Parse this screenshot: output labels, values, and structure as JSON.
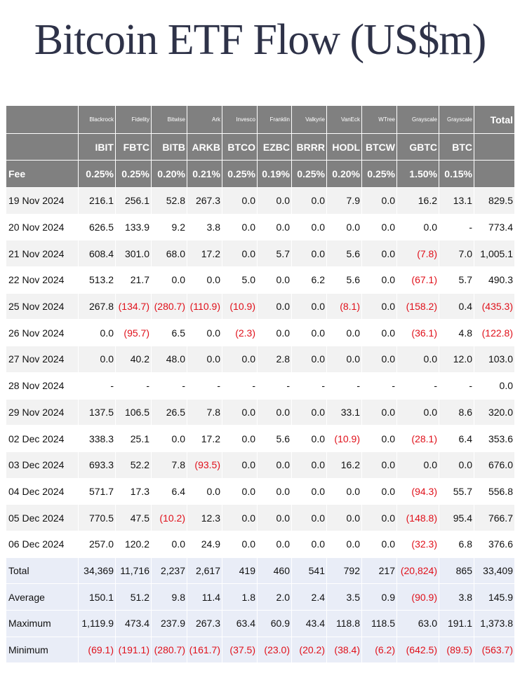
{
  "title": "Bitcoin ETF Flow (US$m)",
  "header": {
    "issuers": [
      "Blackrock",
      "Fidelity",
      "Bitwise",
      "Ark",
      "Invesco",
      "Franklin",
      "Valkyrie",
      "VanEck",
      "WTree",
      "Grayscale",
      "Grayscale"
    ],
    "total": "Total",
    "tickers": [
      "IBIT",
      "FBTC",
      "BITB",
      "ARKB",
      "BTCO",
      "EZBC",
      "BRRR",
      "HODL",
      "BTCW",
      "GBTC",
      "BTC"
    ]
  },
  "fee": {
    "label": "Fee",
    "values": [
      "0.25%",
      "0.25%",
      "0.20%",
      "0.21%",
      "0.25%",
      "0.19%",
      "0.25%",
      "0.20%",
      "0.25%",
      "1.50%",
      "0.15%"
    ]
  },
  "rows": [
    {
      "date": "19 Nov 2024",
      "values": [
        "216.1",
        "256.1",
        "52.8",
        "267.3",
        "0.0",
        "0.0",
        "0.0",
        "7.9",
        "0.0",
        "16.2",
        "13.1",
        "829.5"
      ]
    },
    {
      "date": "20 Nov 2024",
      "values": [
        "626.5",
        "133.9",
        "9.2",
        "3.8",
        "0.0",
        "0.0",
        "0.0",
        "0.0",
        "0.0",
        "0.0",
        "-",
        "773.4"
      ]
    },
    {
      "date": "21 Nov 2024",
      "values": [
        "608.4",
        "301.0",
        "68.0",
        "17.2",
        "0.0",
        "5.7",
        "0.0",
        "5.6",
        "0.0",
        "(7.8)",
        "7.0",
        "1,005.1"
      ]
    },
    {
      "date": "22 Nov 2024",
      "values": [
        "513.2",
        "21.7",
        "0.0",
        "0.0",
        "5.0",
        "0.0",
        "6.2",
        "5.6",
        "0.0",
        "(67.1)",
        "5.7",
        "490.3"
      ]
    },
    {
      "date": "25 Nov 2024",
      "values": [
        "267.8",
        "(134.7)",
        "(280.7)",
        "(110.9)",
        "(10.9)",
        "0.0",
        "0.0",
        "(8.1)",
        "0.0",
        "(158.2)",
        "0.4",
        "(435.3)"
      ]
    },
    {
      "date": "26 Nov 2024",
      "values": [
        "0.0",
        "(95.7)",
        "6.5",
        "0.0",
        "(2.3)",
        "0.0",
        "0.0",
        "0.0",
        "0.0",
        "(36.1)",
        "4.8",
        "(122.8)"
      ]
    },
    {
      "date": "27 Nov 2024",
      "values": [
        "0.0",
        "40.2",
        "48.0",
        "0.0",
        "0.0",
        "2.8",
        "0.0",
        "0.0",
        "0.0",
        "0.0",
        "12.0",
        "103.0"
      ]
    },
    {
      "date": "28 Nov 2024",
      "values": [
        "-",
        "-",
        "-",
        "-",
        "-",
        "-",
        "-",
        "-",
        "-",
        "-",
        "-",
        "0.0"
      ]
    },
    {
      "date": "29 Nov 2024",
      "values": [
        "137.5",
        "106.5",
        "26.5",
        "7.8",
        "0.0",
        "0.0",
        "0.0",
        "33.1",
        "0.0",
        "0.0",
        "8.6",
        "320.0"
      ]
    },
    {
      "date": "02 Dec 2024",
      "values": [
        "338.3",
        "25.1",
        "0.0",
        "17.2",
        "0.0",
        "5.6",
        "0.0",
        "(10.9)",
        "0.0",
        "(28.1)",
        "6.4",
        "353.6"
      ]
    },
    {
      "date": "03 Dec 2024",
      "values": [
        "693.3",
        "52.2",
        "7.8",
        "(93.5)",
        "0.0",
        "0.0",
        "0.0",
        "16.2",
        "0.0",
        "0.0",
        "0.0",
        "676.0"
      ]
    },
    {
      "date": "04 Dec 2024",
      "values": [
        "571.7",
        "17.3",
        "6.4",
        "0.0",
        "0.0",
        "0.0",
        "0.0",
        "0.0",
        "0.0",
        "(94.3)",
        "55.7",
        "556.8"
      ]
    },
    {
      "date": "05 Dec 2024",
      "values": [
        "770.5",
        "47.5",
        "(10.2)",
        "12.3",
        "0.0",
        "0.0",
        "0.0",
        "0.0",
        "0.0",
        "(148.8)",
        "95.4",
        "766.7"
      ]
    },
    {
      "date": "06 Dec 2024",
      "values": [
        "257.0",
        "120.2",
        "0.0",
        "24.9",
        "0.0",
        "0.0",
        "0.0",
        "0.0",
        "0.0",
        "(32.3)",
        "6.8",
        "376.6"
      ]
    }
  ],
  "summary": [
    {
      "label": "Total",
      "values": [
        "34,369",
        "11,716",
        "2,237",
        "2,617",
        "419",
        "460",
        "541",
        "792",
        "217",
        "(20,824)",
        "865",
        "33,409"
      ]
    },
    {
      "label": "Average",
      "values": [
        "150.1",
        "51.2",
        "9.8",
        "11.4",
        "1.8",
        "2.0",
        "2.4",
        "3.5",
        "0.9",
        "(90.9)",
        "3.8",
        "145.9"
      ]
    },
    {
      "label": "Maximum",
      "values": [
        "1,119.9",
        "473.4",
        "237.9",
        "267.3",
        "63.4",
        "60.9",
        "43.4",
        "118.8",
        "118.5",
        "63.0",
        "191.1",
        "1,373.8"
      ]
    },
    {
      "label": "Minimum",
      "values": [
        "(69.1)",
        "(191.1)",
        "(280.7)",
        "(161.7)",
        "(37.5)",
        "(23.0)",
        "(20.2)",
        "(38.4)",
        "(6.2)",
        "(642.5)",
        "(89.5)",
        "(563.7)"
      ]
    }
  ]
}
